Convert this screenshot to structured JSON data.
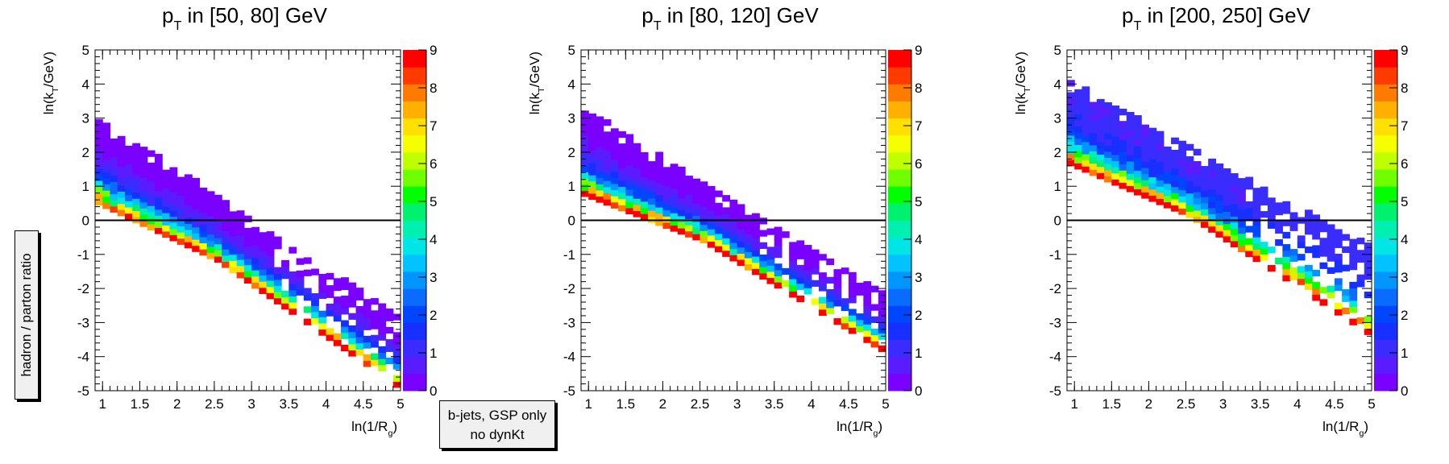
{
  "side_label": "hadron / parton ratio",
  "annotation": {
    "line1": "b-jets, GSP only",
    "line2": "no dynKt"
  },
  "colors": {
    "palette": [
      "#7a00ff",
      "#5a1bff",
      "#3a2cff",
      "#1830ff",
      "#0046ff",
      "#0a6cff",
      "#0095ff",
      "#00c3ff",
      "#00e6e6",
      "#00f0b0",
      "#00f070",
      "#00ff00",
      "#70ff00",
      "#c0ff00",
      "#f5ff00",
      "#ffe000",
      "#ffb000",
      "#ff7a00",
      "#ff3a00",
      "#ff0000"
    ],
    "frame": "#000000"
  },
  "chart_data": [
    {
      "type": "heatmap",
      "title": "p_T in [50, 80] GeV",
      "xlabel": "ln(1/R_g)",
      "ylabel": "ln(k_T/GeV)",
      "xlim": [
        0.9,
        5
      ],
      "ylim": [
        -5,
        5
      ],
      "xticks": [
        "1",
        "1.5",
        "2",
        "2.5",
        "3",
        "3.5",
        "4",
        "4.5",
        "5"
      ],
      "yticks": [
        "-5",
        "-4",
        "-3",
        "-2",
        "-1",
        "0",
        "1",
        "2",
        "3",
        "4",
        "5"
      ],
      "zlim": [
        0,
        9
      ],
      "zticks": [
        "0",
        "1",
        "2",
        "3",
        "4",
        "5",
        "6",
        "7",
        "8",
        "9"
      ],
      "reference_line_y": 0,
      "cell_size": [
        0.1,
        0.18
      ],
      "band": {
        "x_start": 0.9,
        "x_end": 5.0,
        "upper_at_start": 2.95,
        "slope": -1.45,
        "lower_at_start": 0.45,
        "lower_slope": -1.05,
        "ratio_top": 0.3,
        "ratio_bottom": 9
      }
    },
    {
      "type": "heatmap",
      "title": "p_T in [80, 120] GeV",
      "xlabel": "ln(1/R_g)",
      "ylabel": "ln(k_T/GeV)",
      "xlim": [
        0.9,
        5
      ],
      "ylim": [
        -5,
        5
      ],
      "xticks": [
        "1",
        "1.5",
        "2",
        "2.5",
        "3",
        "3.5",
        "4",
        "4.5",
        "5"
      ],
      "yticks": [
        "-5",
        "-4",
        "-3",
        "-2",
        "-1",
        "0",
        "1",
        "2",
        "3",
        "4",
        "5"
      ],
      "zlim": [
        0,
        9
      ],
      "zticks": [
        "0",
        "1",
        "2",
        "3",
        "4",
        "5",
        "6",
        "7",
        "8",
        "9"
      ],
      "reference_line_y": 0,
      "cell_size": [
        0.1,
        0.18
      ],
      "band": {
        "x_start": 0.9,
        "x_end": 5.0,
        "upper_at_start": 3.2,
        "slope": -1.35,
        "lower_at_start": 0.7,
        "lower_slope": -0.85,
        "ratio_top": 0.3,
        "ratio_bottom": 9
      }
    },
    {
      "type": "heatmap",
      "title": "p_T in [200, 250] GeV",
      "xlabel": "ln(1/R_g)",
      "ylabel": "ln(k_T/GeV)",
      "xlim": [
        0.9,
        5
      ],
      "ylim": [
        -5,
        5
      ],
      "xticks": [
        "1",
        "1.5",
        "2",
        "2.5",
        "3",
        "3.5",
        "4",
        "4.5",
        "5"
      ],
      "yticks": [
        "-5",
        "-4",
        "-3",
        "-2",
        "-1",
        "0",
        "1",
        "2",
        "3",
        "4",
        "5"
      ],
      "zlim": [
        0,
        9
      ],
      "zticks": [
        "0",
        "1",
        "2",
        "3",
        "4",
        "5",
        "6",
        "7",
        "8",
        "9"
      ],
      "reference_line_y": 0,
      "cell_size": [
        0.1,
        0.18
      ],
      "band": {
        "x_start": 0.9,
        "x_end": 5.0,
        "upper_at_start": 4.0,
        "slope": -1.2,
        "lower_at_start": 1.6,
        "lower_slope": -0.95,
        "ratio_top": 1.0,
        "ratio_bottom": 9
      }
    }
  ]
}
